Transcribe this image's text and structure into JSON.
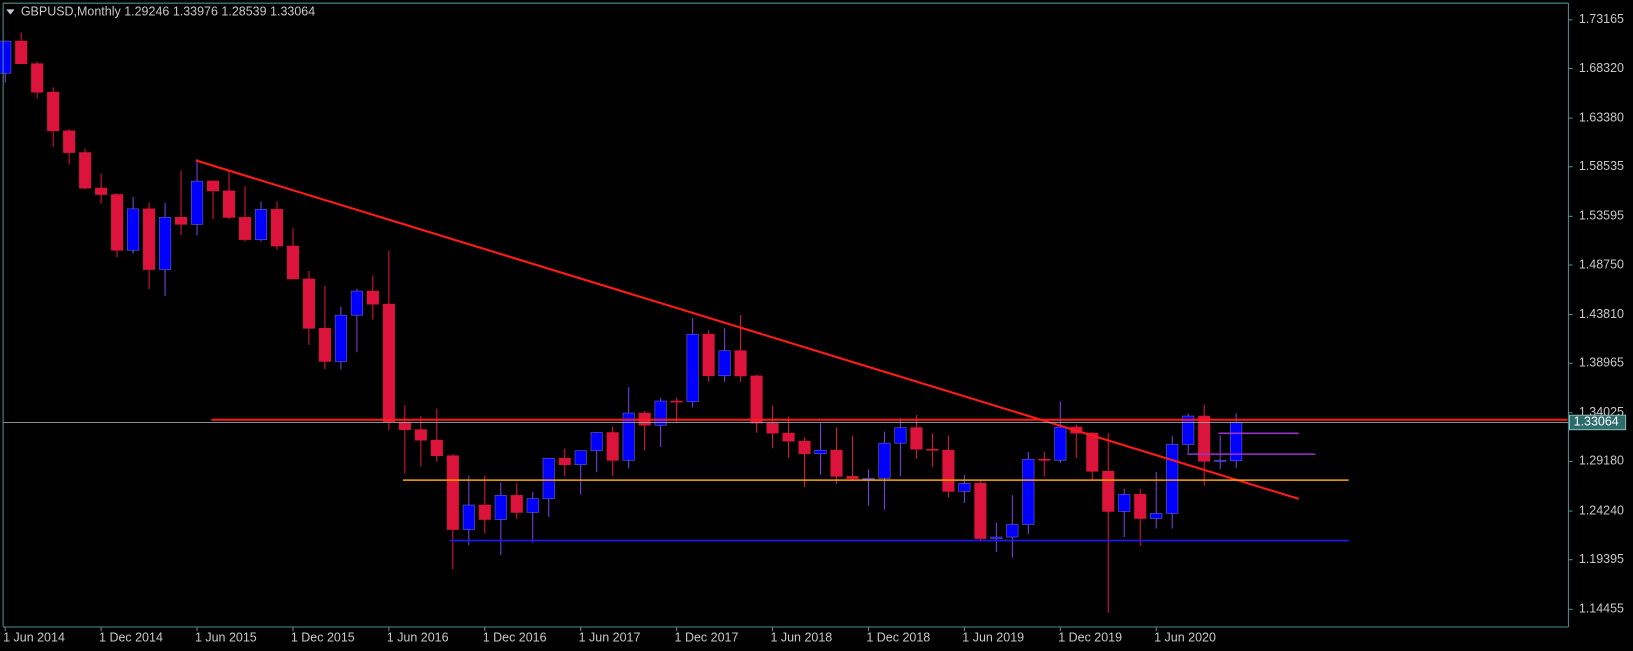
{
  "chart_data": {
    "type": "candlestick",
    "title": "GBPUSD,Monthly",
    "categories": [
      "1 Jun 2014",
      null,
      null,
      null,
      null,
      null,
      "1 Dec 2014",
      null,
      null,
      null,
      null,
      null,
      "1 Jun 2015",
      null,
      null,
      null,
      null,
      null,
      "1 Dec 2015",
      null,
      null,
      null,
      null,
      null,
      "1 Jun 2016",
      null,
      null,
      null,
      null,
      null,
      "1 Dec 2016",
      null,
      null,
      null,
      null,
      null,
      "1 Jun 2017",
      null,
      null,
      null,
      null,
      null,
      "1 Dec 2017",
      null,
      null,
      null,
      null,
      null,
      "1 Jun 2018",
      null,
      null,
      null,
      null,
      null,
      "1 Dec 2018",
      null,
      null,
      null,
      null,
      null,
      "1 Jun 2019",
      null,
      null,
      null,
      null,
      null,
      "1 Dec 2019",
      null,
      null,
      null,
      null,
      null,
      "1 Jun 2020",
      null,
      null,
      null,
      null,
      null
    ],
    "open": [
      1.6785,
      1.7105,
      1.688,
      1.6596,
      1.6211,
      1.5995,
      1.5641,
      1.5577,
      1.5022,
      1.5434,
      1.483,
      1.535,
      1.528,
      1.5712,
      1.5613,
      1.5349,
      1.5128,
      1.5429,
      1.5064,
      1.4736,
      1.4244,
      1.3914,
      1.4375,
      1.4615,
      1.4485,
      1.331,
      1.3235,
      1.313,
      1.2975,
      1.224,
      1.2484,
      1.234,
      1.258,
      1.241,
      1.2548,
      1.295,
      1.2886,
      1.3025,
      1.3206,
      1.2929,
      1.34,
      1.3279,
      1.352,
      1.3513,
      1.4185,
      1.3772,
      1.4021,
      1.377,
      1.33,
      1.32,
      1.312,
      1.2995,
      1.303,
      1.277,
      1.2747,
      1.275,
      1.31,
      1.3255,
      1.304,
      1.303,
      1.262,
      1.27,
      1.215,
      1.2165,
      1.229,
      1.294,
      1.293,
      1.326,
      1.32,
      1.282,
      1.242,
      1.259,
      1.235,
      1.24,
      1.3087,
      1.337,
      1.292,
      1.29246
    ],
    "high": [
      1.7108,
      1.7192,
      1.69,
      1.6644,
      1.6229,
      1.6033,
      1.5786,
      1.559,
      1.5552,
      1.5498,
      1.5497,
      1.5815,
      1.593,
      1.5713,
      1.582,
      1.566,
      1.5509,
      1.5508,
      1.5242,
      1.4815,
      1.4668,
      1.4459,
      1.4639,
      1.477,
      1.5018,
      1.348,
      1.3372,
      1.3445,
      1.299,
      1.2775,
      1.2775,
      1.2706,
      1.2705,
      1.2615,
      1.2905,
      1.3048,
      1.3015,
      1.3213,
      1.3268,
      1.3657,
      1.342,
      1.355,
      1.355,
      1.4345,
      1.4225,
      1.4245,
      1.4377,
      1.378,
      1.347,
      1.3363,
      1.3156,
      1.3298,
      1.3257,
      1.3175,
      1.284,
      1.3215,
      1.335,
      1.338,
      1.3198,
      1.3177,
      1.2784,
      1.273,
      1.231,
      1.2582,
      1.3013,
      1.3014,
      1.3515,
      1.3285,
      1.3212,
      1.32,
      1.2647,
      1.2647,
      1.2813,
      1.317,
      1.3395,
      1.3482,
      1.3176,
      1.33976
    ],
    "low": [
      1.6692,
      1.6878,
      1.6535,
      1.6052,
      1.5875,
      1.5628,
      1.5486,
      1.4952,
      1.4988,
      1.4633,
      1.4565,
      1.517,
      1.517,
      1.533,
      1.533,
      1.5107,
      1.5107,
      1.5027,
      1.4734,
      1.408,
      1.3836,
      1.3835,
      1.4006,
      1.433,
      1.3229,
      1.2798,
      1.2866,
      1.2915,
      1.1841,
      1.2083,
      1.22,
      1.1986,
      1.2345,
      1.2109,
      1.2366,
      1.2772,
      1.2589,
      1.2811,
      1.2774,
      1.285,
      1.3027,
      1.3062,
      1.33,
      1.3455,
      1.3712,
      1.371,
      1.371,
      1.3205,
      1.305,
      1.2956,
      1.2661,
      1.2786,
      1.2695,
      1.2725,
      1.2477,
      1.2437,
      1.2773,
      1.2945,
      1.2864,
      1.256,
      1.2505,
      1.212,
      1.2015,
      1.1959,
      1.2196,
      1.2768,
      1.2905,
      1.2952,
      1.2725,
      1.141,
      1.2165,
      1.2076,
      1.225,
      1.225,
      1.3,
      1.2676,
      1.284,
      1.28539
    ],
    "close": [
      1.7105,
      1.688,
      1.6596,
      1.6211,
      1.5995,
      1.5641,
      1.5577,
      1.5022,
      1.5434,
      1.483,
      1.535,
      1.528,
      1.571,
      1.5613,
      1.5349,
      1.5128,
      1.5429,
      1.5064,
      1.4736,
      1.4244,
      1.3914,
      1.4375,
      1.4615,
      1.4485,
      1.331,
      1.3235,
      1.313,
      1.2975,
      1.224,
      1.2484,
      1.234,
      1.258,
      1.241,
      1.2548,
      1.295,
      1.2886,
      1.3025,
      1.3206,
      1.2929,
      1.34,
      1.3279,
      1.352,
      1.3513,
      1.4185,
      1.3772,
      1.4021,
      1.377,
      1.33,
      1.32,
      1.312,
      1.2995,
      1.303,
      1.277,
      1.2747,
      1.275,
      1.31,
      1.3255,
      1.304,
      1.303,
      1.262,
      1.27,
      1.215,
      1.2165,
      1.229,
      1.294,
      1.293,
      1.326,
      1.32,
      1.282,
      1.242,
      1.259,
      1.235,
      1.24,
      1.3087,
      1.337,
      1.292,
      1.293,
      1.33064
    ],
    "up_color": "#0000ff",
    "down_color": "#dc143c",
    "ylim": [
      1.1269,
      1.7483
    ],
    "yticks": [
      1.73165,
      {
        "value": 1.6832,
        "label": "1.68320"
      },
      {
        "value": 1.6338,
        "label": "1.63380"
      },
      1.58535,
      1.53595,
      {
        "value": 1.4875,
        "label": "1.48750"
      },
      {
        "value": 1.4381,
        "label": "1.43810"
      },
      1.38965,
      1.34025,
      {
        "value": 1.2918,
        "label": "1.29180"
      },
      {
        "value": 1.2424,
        "label": "1.24240"
      },
      1.19395,
      1.14455
    ]
  }
}
